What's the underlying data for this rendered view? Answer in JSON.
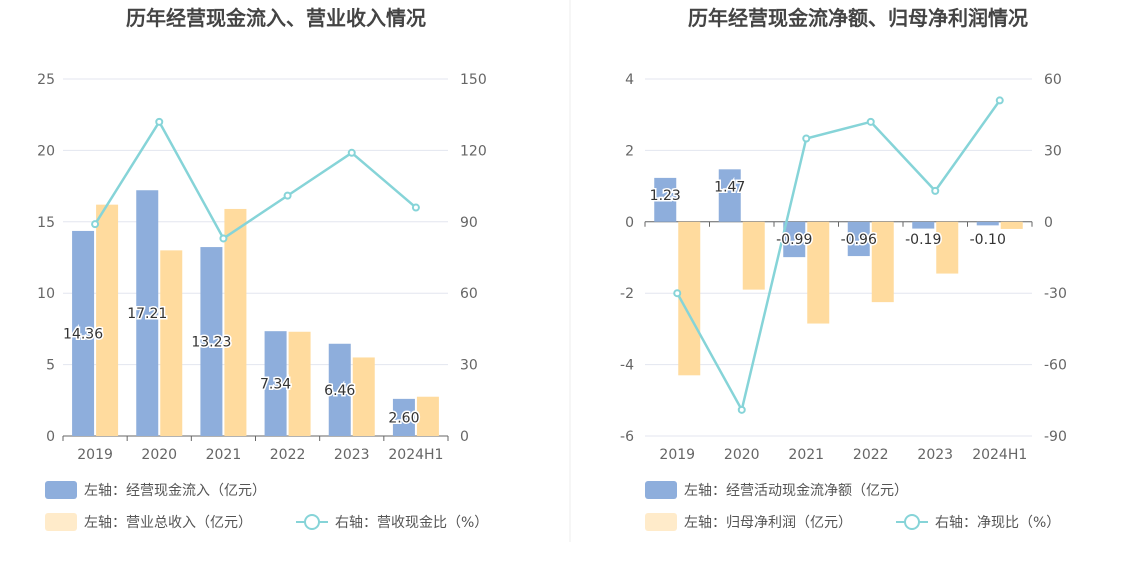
{
  "chart_data": [
    {
      "type": "bar",
      "title": "历年经营现金流入、营业收入情况",
      "categories": [
        "2019",
        "2020",
        "2021",
        "2022",
        "2023",
        "2024H1"
      ],
      "left_axis": {
        "ylim": [
          0,
          25
        ],
        "ticks": [
          "0",
          "5",
          "10",
          "15",
          "20",
          "25"
        ]
      },
      "right_axis": {
        "ylim": [
          0,
          150
        ],
        "ticks": [
          "0",
          "30",
          "60",
          "90",
          "120",
          "150"
        ]
      },
      "grid": true,
      "legend_position": "bottom",
      "series": [
        {
          "name": "左轴：经营现金流入（亿元）",
          "type": "bar",
          "axis": "left",
          "color": "#8eaedc",
          "values": [
            14.36,
            17.21,
            13.23,
            7.34,
            6.46,
            2.6
          ],
          "labels": [
            "14.36",
            "17.21",
            "13.23",
            "7.34",
            "6.46",
            "2.60"
          ]
        },
        {
          "name": "左轴：营业总收入（亿元）",
          "type": "bar",
          "axis": "left",
          "color": "#ffdb9e",
          "values": [
            16.2,
            13.0,
            15.9,
            7.3,
            5.5,
            2.75
          ]
        },
        {
          "name": "右轴：营收现金比（%）",
          "type": "line",
          "axis": "right",
          "color": "#86d4d8",
          "values": [
            89,
            132,
            83,
            101,
            119,
            96
          ]
        }
      ]
    },
    {
      "type": "bar",
      "title": "历年经营现金流净额、归母净利润情况",
      "categories": [
        "2019",
        "2020",
        "2021",
        "2022",
        "2023",
        "2024H1"
      ],
      "left_axis": {
        "ylim": [
          -6,
          4
        ],
        "ticks": [
          "-6",
          "-4",
          "-2",
          "0",
          "2",
          "4"
        ]
      },
      "right_axis": {
        "ylim": [
          -90,
          60
        ],
        "ticks": [
          "-90",
          "-60",
          "-30",
          "0",
          "30",
          "60"
        ]
      },
      "grid": true,
      "legend_position": "bottom",
      "series": [
        {
          "name": "左轴：经营活动现金流净额（亿元）",
          "type": "bar",
          "axis": "left",
          "color": "#8eaedc",
          "values": [
            1.23,
            1.47,
            -0.99,
            -0.96,
            -0.19,
            -0.1
          ],
          "labels": [
            "1.23",
            "1.47",
            "-0.99",
            "-0.96",
            "-0.19",
            "-0.10"
          ]
        },
        {
          "name": "左轴：归母净利润（亿元）",
          "type": "bar",
          "axis": "left",
          "color": "#ffdb9e",
          "values": [
            -4.3,
            -1.9,
            -2.85,
            -2.25,
            -1.45,
            -0.2
          ]
        },
        {
          "name": "右轴：净现比（%）",
          "type": "line",
          "axis": "right",
          "color": "#86d4d8",
          "values": [
            -30,
            -79,
            35,
            42,
            13,
            51
          ]
        }
      ]
    }
  ]
}
